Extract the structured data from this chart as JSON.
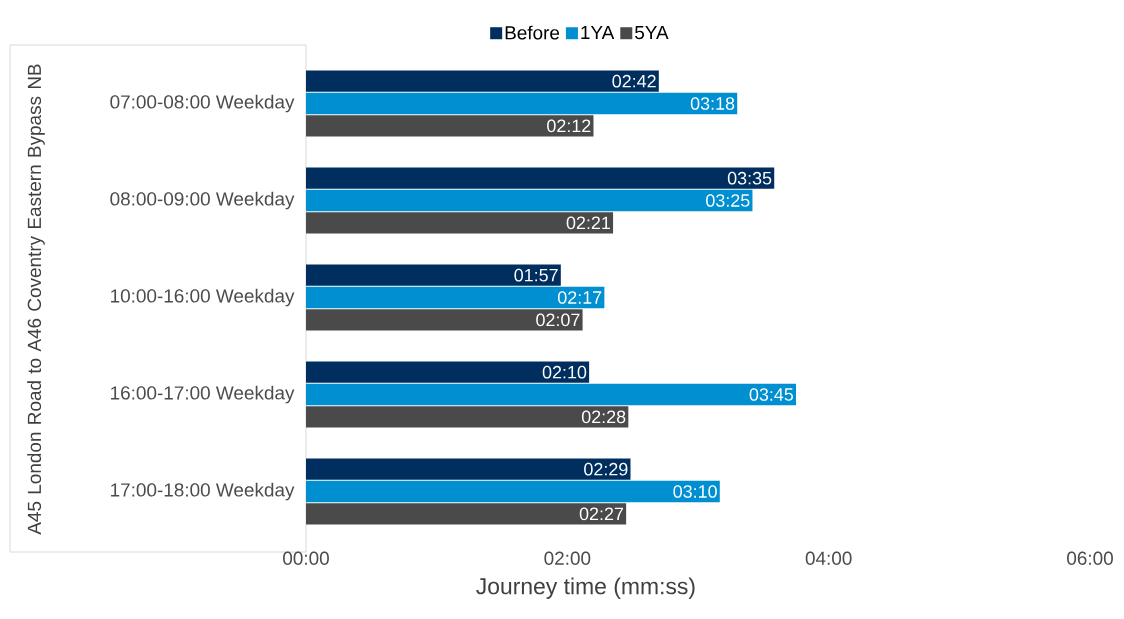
{
  "chart_data": {
    "type": "bar",
    "orientation": "horizontal",
    "xlabel": "Journey time (mm:ss)",
    "annotations": [
      "A45 London Road to A46 Coventry Eastern Bypass NB"
    ],
    "categories": [
      "07:00-08:00 Weekday",
      "08:00-09:00 Weekday",
      "10:00-16:00 Weekday",
      "16:00-17:00 Weekday",
      "17:00-18:00 Weekday"
    ],
    "series": [
      {
        "name": "Before",
        "color": "#002f5f",
        "values": [
          162,
          215,
          117,
          130,
          149
        ],
        "value_labels": [
          "02:42",
          "03:35",
          "01:57",
          "02:10",
          "02:29"
        ]
      },
      {
        "name": "1YA",
        "color": "#008fd0",
        "values": [
          198,
          205,
          137,
          225,
          190
        ],
        "value_labels": [
          "03:18",
          "03:25",
          "02:17",
          "03:45",
          "03:10"
        ]
      },
      {
        "name": "5YA",
        "color": "#4a4a4a",
        "values": [
          132,
          141,
          127,
          148,
          147
        ],
        "value_labels": [
          "02:12",
          "02:21",
          "02:07",
          "02:28",
          "02:27"
        ]
      }
    ],
    "xlim": [
      0,
      360
    ],
    "xticks": [
      {
        "value": 0,
        "label": "00:00"
      },
      {
        "value": 120,
        "label": "02:00"
      },
      {
        "value": 240,
        "label": "04:00"
      },
      {
        "value": 360,
        "label": "06:00"
      }
    ],
    "legend": "top",
    "grid": false
  }
}
